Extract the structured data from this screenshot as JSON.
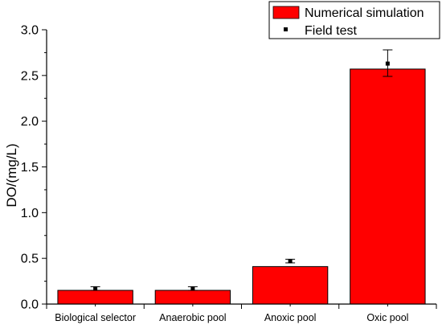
{
  "chart_data": {
    "type": "bar",
    "categories": [
      "Biological selector",
      "Anaerobic pool",
      "Anoxic pool",
      "Oxic pool"
    ],
    "series": [
      {
        "name": "Numerical simulation",
        "kind": "bar",
        "color": "#ff0000",
        "values": [
          0.15,
          0.15,
          0.41,
          2.57
        ]
      },
      {
        "name": "Field test",
        "kind": "point",
        "color": "#000000",
        "values": [
          0.17,
          0.17,
          0.47,
          2.63
        ],
        "error_low": [
          0.15,
          0.15,
          0.45,
          2.49
        ],
        "error_high": [
          0.19,
          0.19,
          0.49,
          2.78
        ]
      }
    ],
    "ylabel": "DO/(mg/L)",
    "xlabel": "",
    "ylim": [
      0,
      3.0
    ],
    "yticks": [
      "0.0",
      "0.5",
      "1.0",
      "1.5",
      "2.0",
      "2.5",
      "3.0"
    ],
    "grid": false,
    "legend_position": "top-right"
  }
}
